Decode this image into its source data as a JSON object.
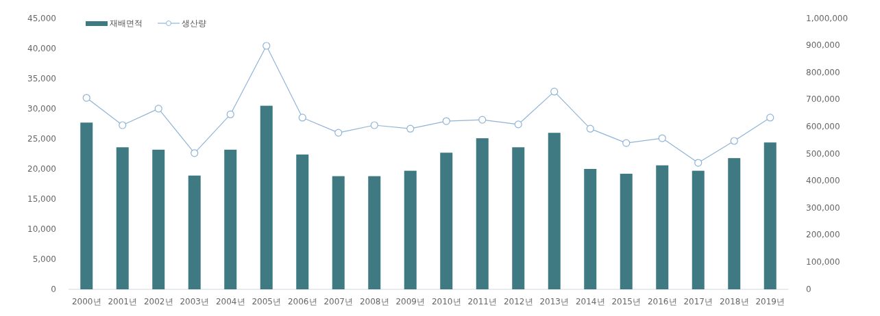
{
  "chart_data": {
    "type": "bar",
    "categories": [
      "2000년",
      "2001년",
      "2002년",
      "2003년",
      "2004년",
      "2005년",
      "2006년",
      "2007년",
      "2008년",
      "2009년",
      "2010년",
      "2011년",
      "2012년",
      "2013년",
      "2014년",
      "2015년",
      "2016년",
      "2017년",
      "2018년",
      "2019년"
    ],
    "series": [
      {
        "name": "재배면적",
        "color": "#3f7a82",
        "values": [
          27700,
          23600,
          23200,
          18900,
          23200,
          30500,
          22400,
          18800,
          18800,
          19700,
          22700,
          25100,
          23600,
          26000,
          20000,
          19200,
          20600,
          19700,
          21800,
          24400
        ]
      },
      {
        "name": "생산량",
        "type": "line",
        "axis": "y2",
        "color": "#8fb4d6",
        "marker": "circle",
        "values": [
          707000,
          606000,
          667000,
          503000,
          646000,
          899000,
          634000,
          578000,
          606000,
          593000,
          621000,
          626000,
          609000,
          730000,
          593000,
          540000,
          558000,
          467000,
          548000,
          634000
        ]
      }
    ],
    "ylim": [
      0,
      45000
    ],
    "yticks": [
      0,
      {
        "value": 5000,
        "label": "5,000"
      },
      {
        "value": 10000,
        "label": "10,000"
      },
      {
        "value": 15000,
        "label": "15,000"
      },
      {
        "value": 20000,
        "label": "20,000"
      },
      {
        "value": 25000,
        "label": "25,000"
      },
      {
        "value": 30000,
        "label": "30,000"
      },
      {
        "value": 35000,
        "label": "35,000"
      },
      {
        "value": 40000,
        "label": "40,000"
      },
      {
        "value": 45000,
        "label": "45,000"
      }
    ],
    "y2lim": [
      0,
      1000000
    ],
    "y2ticks": [
      0,
      {
        "value": 100000,
        "label": "100,000"
      },
      {
        "value": 200000,
        "label": "200,000"
      },
      {
        "value": 300000,
        "label": "300,000"
      },
      {
        "value": 400000,
        "label": "400,000"
      },
      {
        "value": 500000,
        "label": "500,000"
      },
      {
        "value": 600000,
        "label": "600,000"
      },
      {
        "value": 700000,
        "label": "700,000"
      },
      {
        "value": 800000,
        "label": "800,000"
      },
      {
        "value": 900000,
        "label": "900,000"
      },
      {
        "value": 1000000,
        "label": "1,000,000"
      }
    ],
    "legend": "top left"
  }
}
